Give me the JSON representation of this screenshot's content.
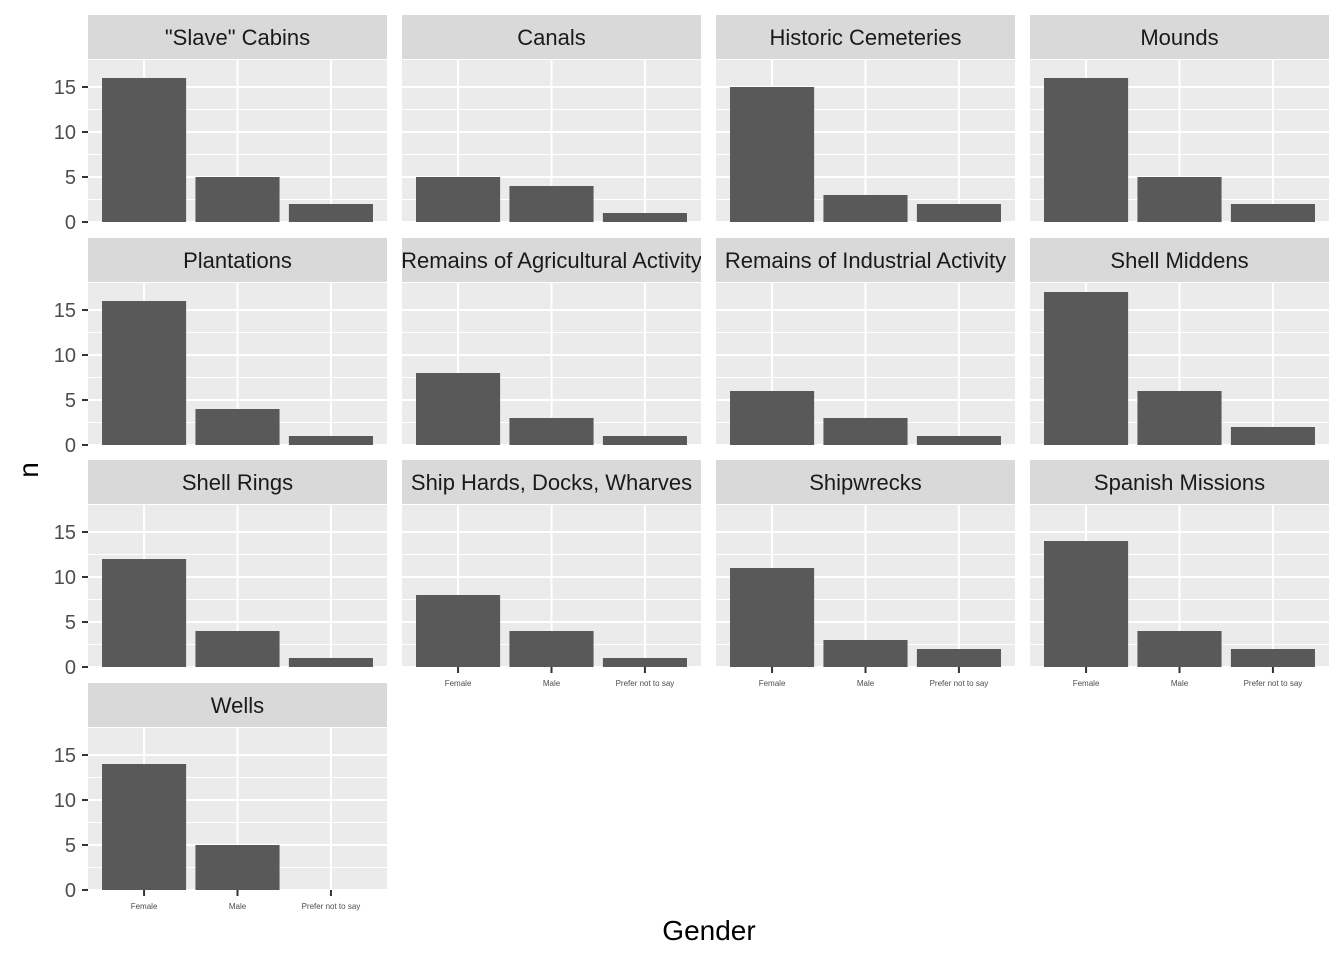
{
  "chart_data": {
    "type": "bar",
    "facet": true,
    "xlabel": "Gender",
    "ylabel": "n",
    "categories": [
      "Female",
      "Male",
      "Prefer not to say"
    ],
    "ylim": [
      0,
      18
    ],
    "yticks": [
      0,
      5,
      10,
      15
    ],
    "grid": true,
    "panels": [
      {
        "name": "\"Slave\" Cabins",
        "values": [
          16,
          5,
          2
        ]
      },
      {
        "name": "Canals",
        "values": [
          5,
          4,
          1
        ]
      },
      {
        "name": "Historic Cemeteries",
        "values": [
          15,
          3,
          2
        ]
      },
      {
        "name": "Mounds",
        "values": [
          16,
          5,
          2
        ]
      },
      {
        "name": "Plantations",
        "values": [
          16,
          4,
          1
        ]
      },
      {
        "name": "Remains of Agricultural Activity",
        "values": [
          8,
          3,
          1
        ]
      },
      {
        "name": "Remains of Industrial Activity",
        "values": [
          6,
          3,
          1
        ]
      },
      {
        "name": "Shell Middens",
        "values": [
          17,
          6,
          2
        ]
      },
      {
        "name": "Shell Rings",
        "values": [
          12,
          4,
          1
        ]
      },
      {
        "name": "Ship Hards, Docks, Wharves",
        "values": [
          8,
          4,
          1
        ]
      },
      {
        "name": "Shipwrecks",
        "values": [
          11,
          3,
          2
        ]
      },
      {
        "name": "Spanish Missions",
        "values": [
          14,
          4,
          2
        ]
      },
      {
        "name": "Wells",
        "values": [
          14,
          5,
          0
        ]
      }
    ]
  },
  "colors": {
    "panel_background": "#ebebeb",
    "strip_background": "#d9d9d9",
    "gridline": "#ffffff",
    "bar": "#595959"
  }
}
